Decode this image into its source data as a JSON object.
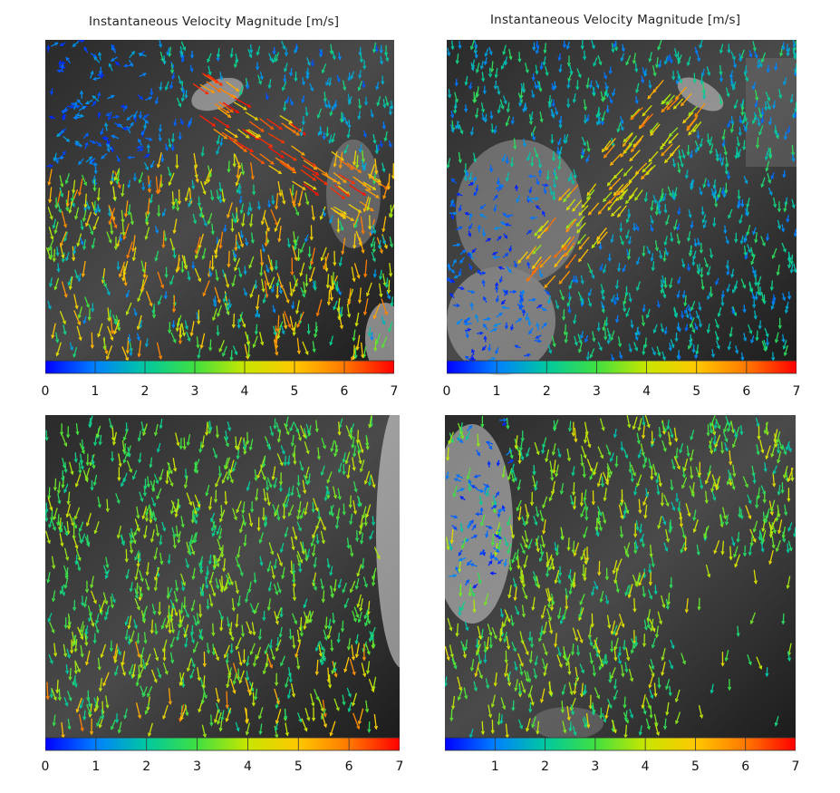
{
  "chart_data": [
    {
      "type": "vector-field",
      "title": "Instantaneous Velocity Magnitude [m/s]",
      "colorbar": {
        "label": "",
        "range": [
          0,
          7
        ],
        "ticks": [
          "0",
          "1",
          "2",
          "3",
          "4",
          "5",
          "6",
          "7"
        ]
      },
      "description_scene": "shower head upper-left spraying down-right",
      "dominant_range": [
        1,
        6
      ],
      "jet": {
        "from": "upper-left",
        "to": "center-right"
      }
    },
    {
      "type": "vector-field",
      "title": "Instantaneous Velocity Magnitude [m/s]",
      "colorbar": {
        "label": "",
        "range": [
          0,
          7
        ],
        "ticks": [
          "0",
          "1",
          "2",
          "3",
          "4",
          "5",
          "6",
          "7"
        ]
      },
      "dominant_range": [
        1,
        5
      ],
      "jet": {
        "from": "upper-right",
        "to": "lower-left"
      }
    },
    {
      "type": "vector-field",
      "title": "",
      "colorbar": {
        "label": "",
        "range": [
          0,
          7
        ],
        "ticks": [
          "0",
          "1",
          "2",
          "3",
          "4",
          "5",
          "6",
          "7"
        ]
      },
      "dominant_range": [
        2,
        5
      ],
      "jet": {
        "from": "top",
        "to": "bottom"
      }
    },
    {
      "type": "vector-field",
      "title": "",
      "colorbar": {
        "label": "",
        "range": [
          0,
          7
        ],
        "ticks": [
          "",
          "1",
          "2",
          "3",
          "4",
          "5",
          "6",
          "7"
        ]
      },
      "dominant_range": [
        1,
        5
      ],
      "jet": {
        "from": "top",
        "to": "bottom"
      }
    }
  ],
  "colors": {
    "background": "#ffffff",
    "colormap": [
      "#0000ff",
      "#0080ff",
      "#00c8a0",
      "#40e040",
      "#c8e600",
      "#ffc800",
      "#ff7800",
      "#ff0000"
    ]
  }
}
